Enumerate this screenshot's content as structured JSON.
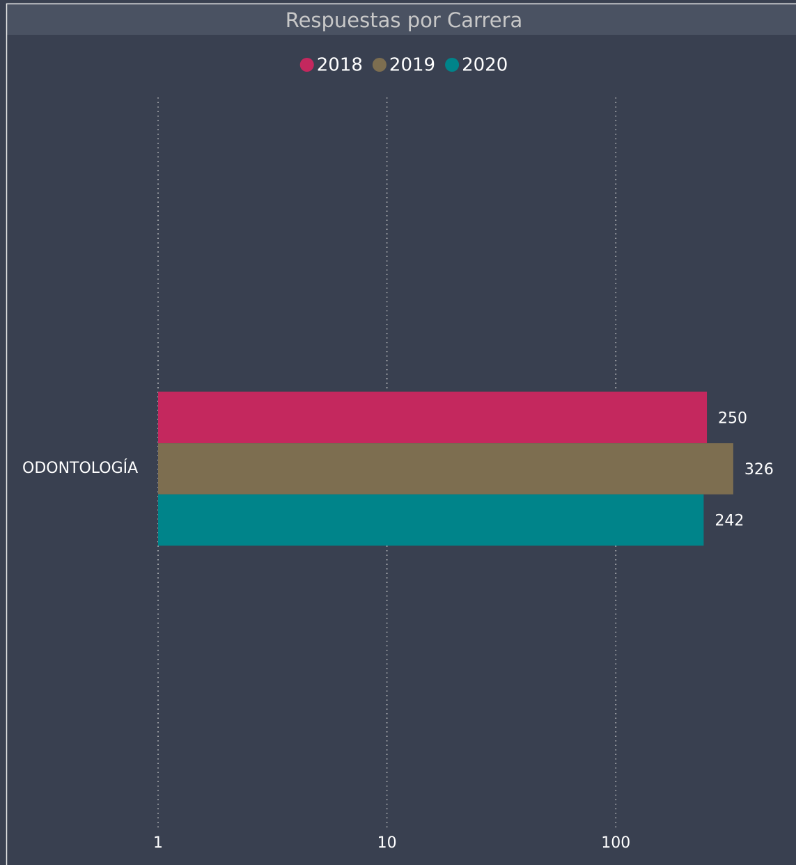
{
  "chart_data": {
    "type": "hbar",
    "title": "Respuestas por Carrera",
    "categories": [
      "ODONTOLOGÍA"
    ],
    "series": [
      {
        "name": "2018",
        "color": "#c4285e",
        "values": [
          250
        ]
      },
      {
        "name": "2019",
        "color": "#7d6e50",
        "values": [
          326
        ]
      },
      {
        "name": "2020",
        "color": "#00848a",
        "values": [
          242
        ]
      }
    ],
    "xscale": "log",
    "xlim": [
      1,
      600
    ],
    "xticks": [
      1,
      10,
      100
    ],
    "grid": true,
    "legend": "top"
  }
}
